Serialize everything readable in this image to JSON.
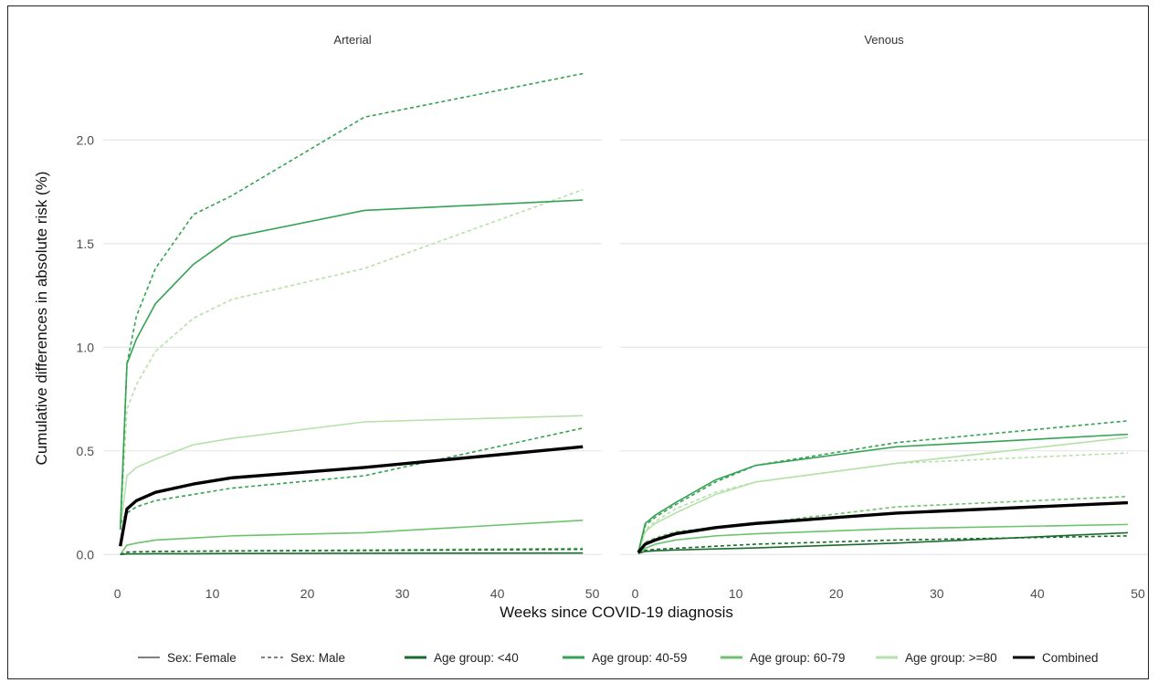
{
  "chart_data": {
    "type": "line",
    "xlabel": "Weeks since COVID-19 diagnosis",
    "ylabel": "Cumulative differences in absolute risk (%)",
    "xlim": [
      -1.5,
      51
    ],
    "ylim": [
      -0.1,
      2.38
    ],
    "xticks": [
      0,
      10,
      20,
      30,
      40,
      50
    ],
    "yticks": [
      0.0,
      0.5,
      1.0,
      1.5,
      2.0
    ],
    "ytick_labels": [
      "0.0",
      "0.5",
      "1.0",
      "1.5",
      "2.0"
    ],
    "xtick_labels": [
      "0",
      "10",
      "20",
      "30",
      "40",
      "50"
    ],
    "grid": "horizontal",
    "colors": {
      "age_lt40": "#1a6b2e",
      "age_40_59": "#33a352",
      "age_60_79": "#6cc36c",
      "age_ge80": "#b5e1a8",
      "combined": "#000000",
      "grid": "#e6e6e6"
    },
    "legend": {
      "position": "bottom",
      "items": [
        {
          "key": "sex_female",
          "label": "Sex: Female",
          "color": "#555555",
          "dash": "solid",
          "width": 1.6
        },
        {
          "key": "sex_male",
          "label": "Sex: Male",
          "color": "#555555",
          "dash": "dotted",
          "width": 1.6
        },
        {
          "key": "age_lt40",
          "label": "Age group: <40",
          "color": "#1a6b2e",
          "dash": "solid",
          "width": 3
        },
        {
          "key": "age_40_59",
          "label": "Age group: 40-59",
          "color": "#33a352",
          "dash": "solid",
          "width": 3
        },
        {
          "key": "age_60_79",
          "label": "Age group: 60-79",
          "color": "#6cc36c",
          "dash": "solid",
          "width": 3
        },
        {
          "key": "age_ge80",
          "label": "Age group: >=80",
          "color": "#b5e1a8",
          "dash": "solid",
          "width": 3
        },
        {
          "key": "combined",
          "label": "Combined",
          "color": "#000000",
          "dash": "solid",
          "width": 3
        }
      ]
    },
    "panels": [
      {
        "title": "Arterial",
        "series": [
          {
            "group": "age_ge80",
            "sex": "male",
            "x": [
              0.3,
              1,
              2,
              4,
              8,
              12,
              26,
              49
            ],
            "y": [
              0.12,
              0.7,
              0.82,
              0.98,
              1.14,
              1.23,
              1.38,
              1.76
            ]
          },
          {
            "group": "age_ge80",
            "sex": "female",
            "x": [
              0.3,
              1,
              2,
              4,
              8,
              12,
              26,
              49
            ],
            "y": [
              0.12,
              0.38,
              0.42,
              0.46,
              0.53,
              0.56,
              0.64,
              0.67
            ]
          },
          {
            "group": "age_60_79",
            "sex": "male",
            "x": [
              0.3,
              1,
              2,
              4,
              8,
              12,
              26,
              49
            ],
            "y": [
              0.0,
              0.01,
              0.012,
              0.014,
              0.016,
              0.018,
              0.022,
              0.03
            ]
          },
          {
            "group": "age_60_79",
            "sex": "female",
            "x": [
              0.3,
              1,
              2,
              4,
              8,
              12,
              26,
              49
            ],
            "y": [
              0.0,
              0.045,
              0.055,
              0.07,
              0.08,
              0.09,
              0.105,
              0.165
            ]
          },
          {
            "group": "age_lt40",
            "sex": "male",
            "x": [
              0.3,
              1,
              2,
              4,
              8,
              12,
              26,
              49
            ],
            "y": [
              0.0,
              0.012,
              0.013,
              0.015,
              0.016,
              0.017,
              0.019,
              0.025
            ]
          },
          {
            "group": "age_lt40",
            "sex": "female",
            "x": [
              0.3,
              1,
              2,
              4,
              8,
              12,
              26,
              49
            ],
            "y": [
              0.0,
              0.003,
              0.003,
              0.004,
              0.004,
              0.005,
              0.006,
              0.007
            ]
          },
          {
            "group": "age_40_59",
            "sex": "male",
            "x": [
              0.3,
              1,
              2,
              4,
              8,
              12,
              26,
              49
            ],
            "y": [
              0.15,
              0.2,
              0.23,
              0.26,
              0.29,
              0.32,
              0.38,
              0.61
            ]
          },
          {
            "group": "age_40_59",
            "sex": "male",
            "x": [
              0.3,
              1,
              2,
              4,
              8,
              12,
              26,
              49
            ],
            "y": [
              0.12,
              0.92,
              1.15,
              1.38,
              1.64,
              1.73,
              2.11,
              2.32
            ]
          },
          {
            "group": "age_40_59",
            "sex": "female",
            "x": [
              0.3,
              1,
              2,
              4,
              8,
              12,
              26,
              49
            ],
            "y": [
              0.12,
              0.92,
              1.04,
              1.21,
              1.4,
              1.53,
              1.66,
              1.71
            ]
          },
          {
            "group": "combined",
            "sex": "female",
            "x": [
              0.3,
              1,
              2,
              4,
              8,
              12,
              26,
              49
            ],
            "y": [
              0.04,
              0.22,
              0.26,
              0.3,
              0.34,
              0.37,
              0.42,
              0.52
            ]
          }
        ]
      },
      {
        "title": "Venous",
        "series": [
          {
            "group": "age_ge80",
            "sex": "male",
            "x": [
              0.3,
              1,
              2,
              4,
              8,
              12,
              26,
              49
            ],
            "y": [
              0.01,
              0.12,
              0.16,
              0.22,
              0.3,
              0.35,
              0.44,
              0.49
            ]
          },
          {
            "group": "age_ge80",
            "sex": "female",
            "x": [
              0.3,
              1,
              2,
              4,
              8,
              12,
              26,
              49
            ],
            "y": [
              0.01,
              0.11,
              0.15,
              0.2,
              0.29,
              0.35,
              0.44,
              0.565
            ]
          },
          {
            "group": "age_60_79",
            "sex": "male",
            "x": [
              0.3,
              1,
              2,
              4,
              8,
              12,
              26,
              49
            ],
            "y": [
              0.01,
              0.06,
              0.08,
              0.11,
              0.13,
              0.15,
              0.23,
              0.28
            ]
          },
          {
            "group": "age_60_79",
            "sex": "female",
            "x": [
              0.3,
              1,
              2,
              4,
              8,
              12,
              26,
              49
            ],
            "y": [
              0.005,
              0.03,
              0.05,
              0.07,
              0.09,
              0.1,
              0.125,
              0.145
            ]
          },
          {
            "group": "age_lt40",
            "sex": "male",
            "x": [
              0.3,
              1,
              2,
              4,
              8,
              12,
              26,
              49
            ],
            "y": [
              0.005,
              0.02,
              0.025,
              0.03,
              0.04,
              0.05,
              0.07,
              0.09
            ]
          },
          {
            "group": "age_lt40",
            "sex": "female",
            "x": [
              0.3,
              1,
              2,
              4,
              8,
              12,
              26,
              49
            ],
            "y": [
              0.005,
              0.015,
              0.018,
              0.022,
              0.027,
              0.032,
              0.055,
              0.105
            ]
          },
          {
            "group": "age_40_59",
            "sex": "male",
            "x": [
              0.3,
              1,
              2,
              4,
              8,
              12,
              26,
              49
            ],
            "y": [
              0.01,
              0.14,
              0.18,
              0.24,
              0.35,
              0.43,
              0.54,
              0.645
            ]
          },
          {
            "group": "age_40_59",
            "sex": "female",
            "x": [
              0.3,
              1,
              2,
              4,
              8,
              12,
              26,
              49
            ],
            "y": [
              0.01,
              0.15,
              0.19,
              0.25,
              0.36,
              0.43,
              0.52,
              0.58
            ]
          },
          {
            "group": "combined",
            "sex": "female",
            "x": [
              0.3,
              1,
              2,
              4,
              8,
              12,
              26,
              49
            ],
            "y": [
              0.01,
              0.05,
              0.07,
              0.1,
              0.13,
              0.15,
              0.2,
              0.25
            ]
          }
        ]
      }
    ]
  }
}
